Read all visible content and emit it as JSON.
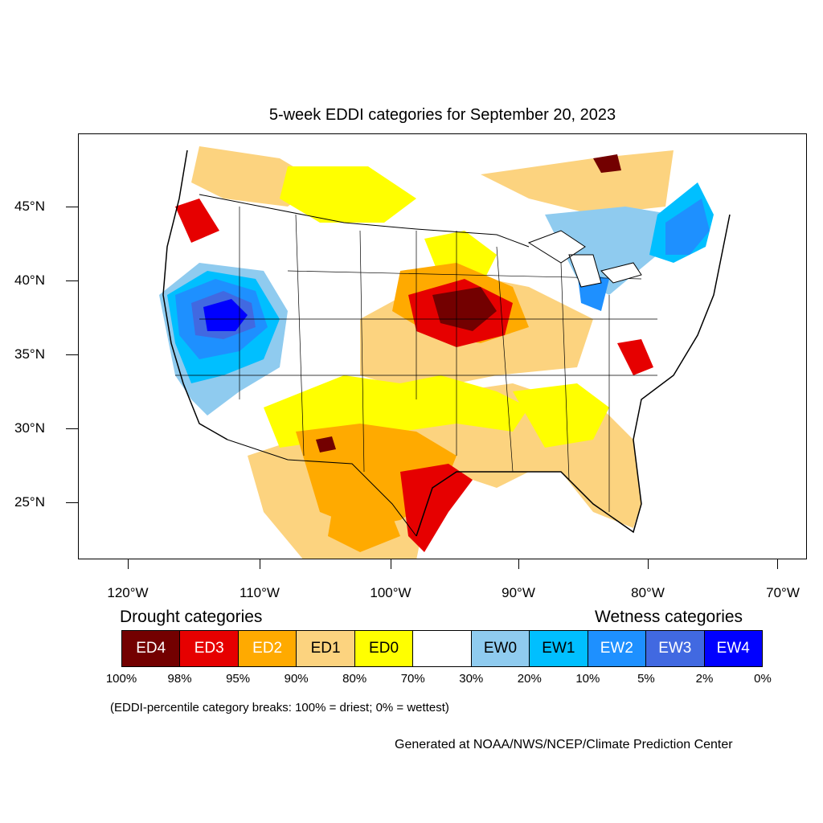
{
  "title": "5-week EDDI categories for September 20, 2023",
  "map": {
    "lat_labels": [
      "45°N",
      "40°N",
      "35°N",
      "30°N",
      "25°N"
    ],
    "lon_labels": [
      "120°W",
      "110°W",
      "100°W",
      "90°W",
      "80°W",
      "70°W"
    ]
  },
  "legend": {
    "drought_heading": "Drought categories",
    "wetness_heading": "Wetness categories",
    "categories": [
      {
        "label": "ED4",
        "color": "#730000",
        "text_color": "#ffffff"
      },
      {
        "label": "ED3",
        "color": "#e60000",
        "text_color": "#ffffff"
      },
      {
        "label": "ED2",
        "color": "#ffaa00",
        "text_color": "#ffffff"
      },
      {
        "label": "ED1",
        "color": "#fcd37f",
        "text_color": "#000000"
      },
      {
        "label": "ED0",
        "color": "#ffff00",
        "text_color": "#000000"
      },
      {
        "label": "",
        "color": "#ffffff",
        "text_color": "#000000"
      },
      {
        "label": "EW0",
        "color": "#8fcbef",
        "text_color": "#000000"
      },
      {
        "label": "EW1",
        "color": "#00bfff",
        "text_color": "#000000"
      },
      {
        "label": "EW2",
        "color": "#1e90ff",
        "text_color": "#ffffff"
      },
      {
        "label": "EW3",
        "color": "#4169e1",
        "text_color": "#ffffff"
      },
      {
        "label": "EW4",
        "color": "#0000ff",
        "text_color": "#ffffff"
      }
    ],
    "percent_breaks": [
      "100%",
      "98%",
      "95%",
      "90%",
      "80%",
      "70%",
      "30%",
      "20%",
      "10%",
      "5%",
      "2%",
      "0%"
    ]
  },
  "note": "(EDDI-percentile category breaks: 100% = driest; 0% = wettest)",
  "credit": "Generated at NOAA/NWS/NCEP/Climate Prediction Center"
}
